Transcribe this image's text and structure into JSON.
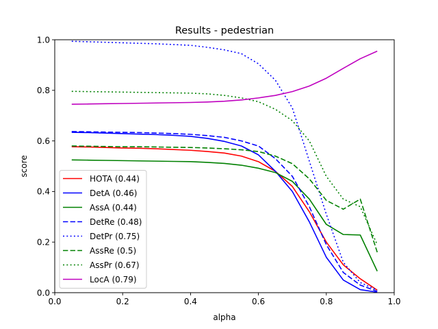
{
  "chart_data": {
    "type": "line",
    "title": "Results - pedestrian",
    "xlabel": "alpha",
    "ylabel": "score",
    "xlim": [
      0.0,
      1.0
    ],
    "ylim": [
      0.0,
      1.0
    ],
    "xticks": [
      0.0,
      0.2,
      0.4,
      0.6,
      0.8,
      1.0
    ],
    "yticks": [
      0.0,
      0.2,
      0.4,
      0.6,
      0.8,
      1.0
    ],
    "xtick_labels": [
      "0.0",
      "0.2",
      "0.4",
      "0.6",
      "0.8",
      "1.0"
    ],
    "ytick_labels": [
      "0.0",
      "0.2",
      "0.4",
      "0.6",
      "0.8",
      "1.0"
    ],
    "grid": false,
    "legend_position": "lower-left",
    "x": [
      0.05,
      0.1,
      0.15,
      0.2,
      0.25,
      0.3,
      0.35,
      0.4,
      0.45,
      0.5,
      0.55,
      0.6,
      0.65,
      0.7,
      0.75,
      0.8,
      0.85,
      0.9,
      0.95
    ],
    "series": [
      {
        "name": "HOTA (0.44)",
        "color": "#ff0000",
        "dash": "solid",
        "values": [
          0.577,
          0.576,
          0.574,
          0.572,
          0.571,
          0.569,
          0.566,
          0.563,
          0.558,
          0.552,
          0.54,
          0.518,
          0.48,
          0.42,
          0.32,
          0.2,
          0.11,
          0.055,
          0.01
        ]
      },
      {
        "name": "DetA (0.46)",
        "color": "#0000ff",
        "dash": "solid",
        "values": [
          0.634,
          0.633,
          0.631,
          0.629,
          0.627,
          0.625,
          0.622,
          0.618,
          0.61,
          0.598,
          0.58,
          0.545,
          0.48,
          0.4,
          0.28,
          0.14,
          0.05,
          0.012,
          0.002
        ]
      },
      {
        "name": "AssA (0.44)",
        "color": "#008000",
        "dash": "solid",
        "values": [
          0.525,
          0.524,
          0.523,
          0.522,
          0.521,
          0.52,
          0.519,
          0.518,
          0.515,
          0.511,
          0.504,
          0.492,
          0.475,
          0.44,
          0.37,
          0.27,
          0.23,
          0.228,
          0.085
        ]
      },
      {
        "name": "DetRe (0.48)",
        "color": "#0000ff",
        "dash": "dashed",
        "values": [
          0.637,
          0.636,
          0.635,
          0.634,
          0.633,
          0.631,
          0.629,
          0.626,
          0.621,
          0.614,
          0.6,
          0.58,
          0.53,
          0.46,
          0.34,
          0.19,
          0.08,
          0.03,
          0.005
        ]
      },
      {
        "name": "DetPr (0.75)",
        "color": "#0000ff",
        "dash": "dotted",
        "values": [
          0.994,
          0.992,
          0.99,
          0.988,
          0.986,
          0.984,
          0.981,
          0.978,
          0.97,
          0.96,
          0.945,
          0.905,
          0.84,
          0.73,
          0.52,
          0.31,
          0.12,
          0.04,
          0.01
        ]
      },
      {
        "name": "AssRe (0.5)",
        "color": "#008000",
        "dash": "dashed",
        "values": [
          0.58,
          0.579,
          0.578,
          0.577,
          0.577,
          0.576,
          0.575,
          0.574,
          0.572,
          0.569,
          0.565,
          0.558,
          0.54,
          0.51,
          0.45,
          0.365,
          0.33,
          0.37,
          0.16
        ]
      },
      {
        "name": "AssPr (0.67)",
        "color": "#008000",
        "dash": "dotted",
        "values": [
          0.796,
          0.795,
          0.794,
          0.793,
          0.792,
          0.791,
          0.79,
          0.789,
          0.786,
          0.78,
          0.77,
          0.755,
          0.725,
          0.68,
          0.6,
          0.46,
          0.37,
          0.34,
          0.19
        ]
      },
      {
        "name": "LocA (0.79)",
        "color": "#bf00bf",
        "dash": "solid",
        "values": [
          0.745,
          0.746,
          0.747,
          0.748,
          0.749,
          0.75,
          0.751,
          0.752,
          0.754,
          0.757,
          0.762,
          0.77,
          0.78,
          0.795,
          0.817,
          0.848,
          0.887,
          0.925,
          0.955
        ]
      }
    ]
  }
}
